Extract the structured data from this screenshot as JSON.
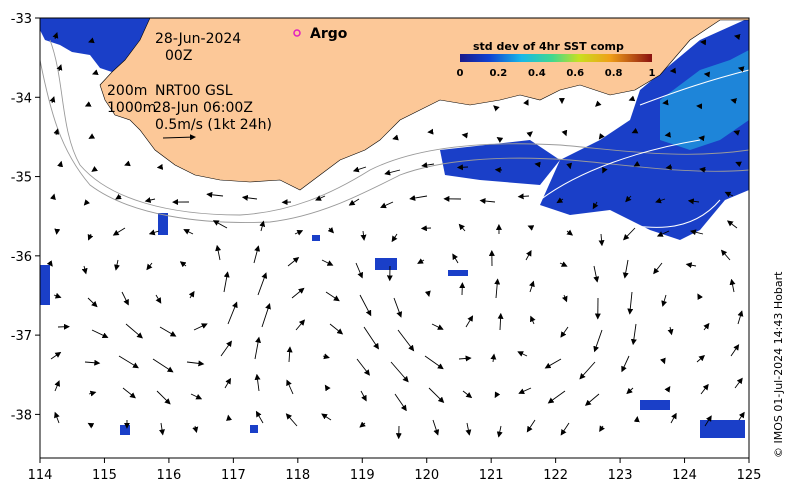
{
  "annotations": {
    "date": "28-Jun-2024",
    "hour": "00Z",
    "depth_200": "200m",
    "depth_1000": "1000m",
    "product": "NRT00 GSL",
    "valid_time": "28-Jun 06:00Z",
    "vector_scale": "0.5m/s (1kt 24h)"
  },
  "legend": {
    "argo_label": "Argo",
    "argo_color": "#e020c0"
  },
  "colorbar": {
    "title": "std dev of 4hr SST comp",
    "ticks": [
      "0",
      "0.2",
      "0.4",
      "0.6",
      "0.8",
      "1"
    ]
  },
  "credit": "© IMOS 01-Jul-2024 14:43 Hobart",
  "colors": {
    "land": "#fcc898",
    "sst_low": "#1a3fc8",
    "sst_mid": "#22c0e8",
    "contour": "#9a9a9a"
  },
  "chart_data": {
    "type": "map",
    "x_ticks": [
      "114",
      "115",
      "116",
      "117",
      "118",
      "119",
      "120",
      "121",
      "122",
      "123",
      "124",
      "125"
    ],
    "y_ticks": [
      "-33",
      "-34",
      "-35",
      "-36",
      "-37",
      "-38"
    ],
    "xlim": [
      114,
      125
    ],
    "ylim": [
      -38.55,
      -33
    ]
  }
}
